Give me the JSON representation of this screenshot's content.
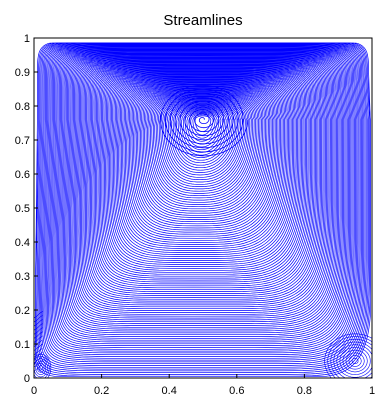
{
  "chart_data": {
    "type": "streamline",
    "title": "Streamlines",
    "xlabel": "",
    "ylabel": "",
    "xlim": [
      0,
      1
    ],
    "ylim": [
      0,
      1
    ],
    "xticks": [
      0,
      0.2,
      0.4,
      0.6,
      0.8,
      1
    ],
    "xtick_labels": [
      "0",
      "0.2",
      "0.4",
      "0.6",
      "0.8",
      "1"
    ],
    "yticks": [
      0,
      0.1,
      0.2,
      0.3,
      0.4,
      0.5,
      0.6,
      0.7,
      0.8,
      0.9,
      1
    ],
    "ytick_labels": [
      "0",
      "0.1",
      "0.2",
      "0.3",
      "0.4",
      "0.5",
      "0.6",
      "0.7",
      "0.8",
      "0.9",
      "1"
    ],
    "grid": false,
    "line_color": "#0000ff",
    "primary_vortex_center": [
      0.5,
      0.76
    ],
    "secondary_vortex_center": [
      0.95,
      0.05
    ]
  }
}
